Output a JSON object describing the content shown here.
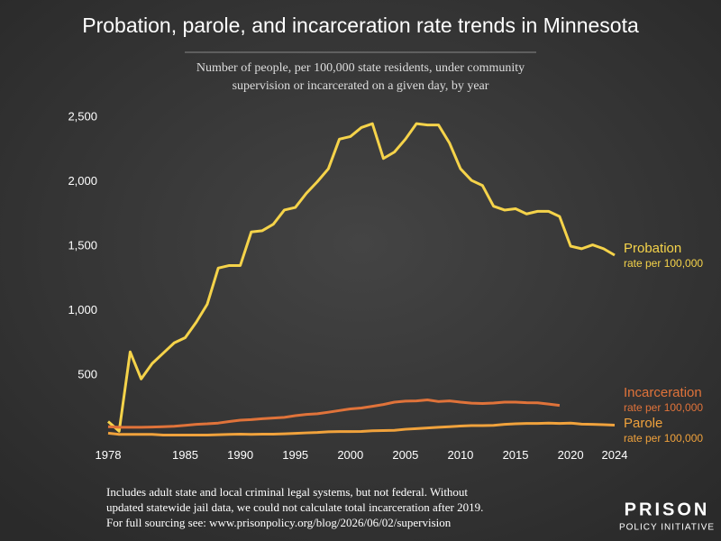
{
  "chart_data": {
    "type": "line",
    "title": "Probation, parole, and incarceration rate trends in Minnesota",
    "subtitle": [
      "Number of people, per 100,000 state residents, under community",
      "supervision or incarcerated on a given day, by year"
    ],
    "x": [
      1978,
      1979,
      1980,
      1981,
      1982,
      1983,
      1984,
      1985,
      1986,
      1987,
      1988,
      1989,
      1990,
      1991,
      1992,
      1993,
      1994,
      1995,
      1996,
      1997,
      1998,
      1999,
      2000,
      2001,
      2002,
      2003,
      2004,
      2005,
      2006,
      2007,
      2008,
      2009,
      2010,
      2011,
      2012,
      2013,
      2014,
      2015,
      2016,
      2017,
      2018,
      2019,
      2020,
      2021,
      2022,
      2023,
      2024
    ],
    "xlim": [
      1978,
      2024
    ],
    "xticks": [
      1978,
      1985,
      1990,
      1995,
      2000,
      2005,
      2010,
      2015,
      2020,
      2024
    ],
    "ylim": [
      0,
      2500
    ],
    "yticks": [
      500,
      {
        "value": 1000,
        "label": "1,000"
      },
      {
        "value": 1500,
        "label": "1,500"
      },
      {
        "value": 2000,
        "label": "2,000"
      },
      {
        "value": 2500,
        "label": "2,500"
      }
    ],
    "series": [
      {
        "name": "Probation",
        "unit": "rate per 100,000",
        "color": "#f5d34a",
        "values": [
          140,
          65,
          680,
          470,
          590,
          670,
          750,
          790,
          910,
          1050,
          1330,
          1350,
          1350,
          1610,
          1620,
          1670,
          1780,
          1800,
          1910,
          2000,
          2100,
          2330,
          2350,
          2420,
          2450,
          2180,
          2230,
          2330,
          2450,
          2440,
          2440,
          2300,
          2100,
          2010,
          1970,
          1810,
          1780,
          1790,
          1750,
          1770,
          1770,
          1730,
          1500,
          1480,
          1510,
          1480,
          1430
        ]
      },
      {
        "name": "Incarceration",
        "unit": "rate per 100,000",
        "color": "#e0733a",
        "values": [
          100,
          95,
          95,
          95,
          97,
          100,
          103,
          110,
          118,
          122,
          128,
          140,
          150,
          155,
          162,
          167,
          172,
          185,
          195,
          200,
          212,
          225,
          238,
          245,
          258,
          272,
          290,
          298,
          300,
          308,
          295,
          300,
          290,
          282,
          280,
          283,
          290,
          290,
          286,
          285,
          275,
          265,
          null,
          null,
          null,
          null,
          null
        ]
      },
      {
        "name": "Parole",
        "unit": "rate per 100,000",
        "color": "#f0a23c",
        "values": [
          50,
          40,
          40,
          40,
          40,
          35,
          35,
          35,
          35,
          35,
          38,
          40,
          42,
          40,
          42,
          42,
          45,
          48,
          52,
          55,
          60,
          62,
          62,
          63,
          68,
          70,
          72,
          80,
          85,
          90,
          95,
          100,
          105,
          108,
          108,
          110,
          118,
          122,
          125,
          125,
          128,
          125,
          128,
          120,
          118,
          115,
          112
        ]
      }
    ],
    "footnote": [
      "Includes adult state and local criminal legal systems, but not federal. Without",
      "updated statewide jail data, we could not calculate total incarceration after 2019.",
      "For full sourcing see: www.prisonpolicy.org/blog/2026/06/02/supervision"
    ],
    "logo": [
      "PRISON",
      "POLICY INITIATIVE"
    ]
  }
}
